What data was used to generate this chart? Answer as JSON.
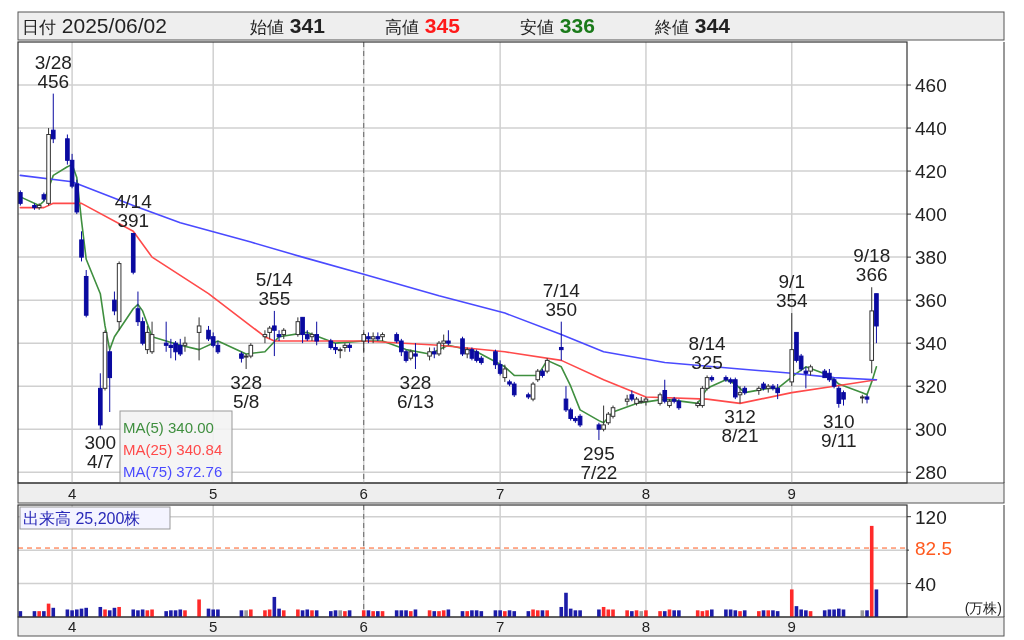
{
  "chart_data": [
    {
      "type": "candlestick",
      "x": [
        "2025-03-21",
        "2025-03-24",
        "2025-03-25",
        "2025-03-26",
        "2025-03-27",
        "2025-03-28",
        "2025-03-31",
        "2025-04-01",
        "2025-04-02",
        "2025-04-03",
        "2025-04-04",
        "2025-04-07",
        "2025-04-08",
        "2025-04-09",
        "2025-04-10",
        "2025-04-11",
        "2025-04-14",
        "2025-04-15",
        "2025-04-16",
        "2025-04-17",
        "2025-04-18",
        "2025-04-21",
        "2025-04-22",
        "2025-04-23",
        "2025-04-24",
        "2025-04-25",
        "2025-04-28",
        "2025-04-30",
        "2025-05-01",
        "2025-05-02",
        "2025-05-07",
        "2025-05-08",
        "2025-05-09",
        "2025-05-12",
        "2025-05-13",
        "2025-05-14",
        "2025-05-15",
        "2025-05-16",
        "2025-05-19",
        "2025-05-20",
        "2025-05-21",
        "2025-05-22",
        "2025-05-23",
        "2025-05-26",
        "2025-05-27",
        "2025-05-28",
        "2025-05-29",
        "2025-05-30",
        "2025-06-02",
        "2025-06-03",
        "2025-06-04",
        "2025-06-05",
        "2025-06-06",
        "2025-06-09",
        "2025-06-10",
        "2025-06-11",
        "2025-06-12",
        "2025-06-13",
        "2025-06-16",
        "2025-06-17",
        "2025-06-18",
        "2025-06-19",
        "2025-06-20",
        "2025-06-23",
        "2025-06-24",
        "2025-06-25",
        "2025-06-26",
        "2025-06-27",
        "2025-06-30",
        "2025-07-01",
        "2025-07-02",
        "2025-07-03",
        "2025-07-04",
        "2025-07-07",
        "2025-07-08",
        "2025-07-09",
        "2025-07-10",
        "2025-07-11",
        "2025-07-14",
        "2025-07-15",
        "2025-07-16",
        "2025-07-17",
        "2025-07-18",
        "2025-07-22",
        "2025-07-23",
        "2025-07-24",
        "2025-07-25",
        "2025-07-28",
        "2025-07-29",
        "2025-07-30",
        "2025-07-31",
        "2025-08-01",
        "2025-08-04",
        "2025-08-05",
        "2025-08-06",
        "2025-08-07",
        "2025-08-08",
        "2025-08-12",
        "2025-08-13",
        "2025-08-14",
        "2025-08-15",
        "2025-08-18",
        "2025-08-19",
        "2025-08-20",
        "2025-08-21",
        "2025-08-22",
        "2025-08-25",
        "2025-08-26",
        "2025-08-27",
        "2025-08-28",
        "2025-08-29",
        "2025-09-01",
        "2025-09-02",
        "2025-09-03",
        "2025-09-04",
        "2025-09-05",
        "2025-09-08",
        "2025-09-09",
        "2025-09-10",
        "2025-09-11",
        "2025-09-12",
        "2025-09-16",
        "2025-09-17",
        "2025-09-18",
        "2025-09-19"
      ],
      "ohlc": [
        [
          410,
          411,
          404,
          405
        ],
        [
          404,
          405,
          402,
          403
        ],
        [
          403,
          405,
          402,
          404
        ],
        [
          409,
          410,
          406,
          407
        ],
        [
          405,
          440,
          404,
          437
        ],
        [
          439,
          456,
          433,
          435
        ],
        [
          435,
          437,
          423,
          425
        ],
        [
          425,
          428,
          412,
          413
        ],
        [
          414,
          416,
          400,
          401
        ],
        [
          388,
          392,
          378,
          380
        ],
        [
          371,
          374,
          352,
          353
        ],
        [
          319,
          326,
          300,
          302
        ],
        [
          319,
          346,
          318,
          345
        ],
        [
          336,
          337,
          308,
          324
        ],
        [
          360,
          364,
          353,
          355
        ],
        [
          350,
          378,
          346,
          377
        ],
        [
          391,
          391,
          372,
          373
        ],
        [
          356,
          364,
          348,
          350
        ],
        [
          350,
          352,
          339,
          340
        ],
        [
          337,
          348,
          335,
          345
        ],
        [
          336,
          350,
          335,
          344
        ],
        [
          340,
          350,
          336,
          339
        ],
        [
          339,
          342,
          333,
          338
        ],
        [
          340,
          341,
          332,
          336
        ],
        [
          339,
          342,
          334,
          335
        ],
        [
          339,
          343,
          336,
          340
        ],
        [
          345,
          352,
          332,
          348
        ],
        [
          346,
          348,
          341,
          342
        ],
        [
          343,
          345,
          338,
          339
        ],
        [
          339,
          341,
          335,
          336
        ],
        [
          335,
          336,
          331,
          333
        ],
        [
          334,
          335,
          328,
          334
        ],
        [
          334,
          340,
          333,
          339
        ],
        [
          343,
          346,
          340,
          344
        ],
        [
          345,
          348,
          342,
          347
        ],
        [
          348,
          355,
          334,
          346
        ],
        [
          344,
          346,
          341,
          343
        ],
        [
          344,
          347,
          342,
          346
        ],
        [
          344,
          352,
          343,
          350
        ],
        [
          352,
          352,
          340,
          344
        ],
        [
          344,
          346,
          341,
          342
        ],
        [
          343,
          345,
          341,
          344
        ],
        [
          344,
          350,
          339,
          341
        ],
        [
          341,
          342,
          337,
          338
        ],
        [
          338,
          340,
          335,
          337
        ],
        [
          337,
          338,
          333,
          337
        ],
        [
          338,
          340,
          336,
          339
        ],
        [
          339,
          340,
          336,
          338
        ],
        [
          341,
          345,
          336,
          344
        ],
        [
          343,
          345,
          340,
          342
        ],
        [
          342,
          345,
          340,
          343
        ],
        [
          343,
          345,
          341,
          342
        ],
        [
          343,
          345,
          341,
          344
        ],
        [
          344,
          345,
          340,
          341
        ],
        [
          341,
          342,
          334,
          336
        ],
        [
          336,
          337,
          331,
          332
        ],
        [
          333,
          337,
          332,
          336
        ],
        [
          335,
          340,
          328,
          334
        ],
        [
          334,
          338,
          332,
          336
        ],
        [
          336,
          338,
          333,
          335
        ],
        [
          335,
          341,
          334,
          340
        ],
        [
          340,
          344,
          337,
          341
        ],
        [
          341,
          346,
          339,
          340
        ],
        [
          342,
          343,
          334,
          335
        ],
        [
          335,
          338,
          333,
          337
        ],
        [
          337,
          338,
          332,
          333
        ],
        [
          336,
          337,
          331,
          332
        ],
        [
          333,
          334,
          330,
          331
        ],
        [
          336,
          337,
          328,
          330
        ],
        [
          330,
          332,
          325,
          326
        ],
        [
          324,
          330,
          322,
          328
        ],
        [
          322,
          323,
          320,
          321
        ],
        [
          321,
          322,
          315,
          316
        ],
        [
          316,
          317,
          314,
          315
        ],
        [
          314,
          322,
          313,
          321
        ],
        [
          323,
          328,
          322,
          327
        ],
        [
          327,
          328,
          324,
          325
        ],
        [
          327,
          333,
          326,
          332
        ],
        [
          338,
          350,
          332,
          337
        ],
        [
          314,
          320,
          308,
          309
        ],
        [
          309,
          310,
          304,
          305
        ],
        [
          305,
          306,
          303,
          304
        ],
        [
          306,
          307,
          301,
          302
        ],
        [
          302,
          303,
          295,
          300
        ],
        [
          300,
          311,
          299,
          302
        ],
        [
          303,
          308,
          302,
          307
        ],
        [
          306,
          311,
          305,
          310
        ],
        [
          313,
          316,
          311,
          314
        ],
        [
          316,
          318,
          313,
          314
        ],
        [
          312,
          315,
          311,
          314
        ],
        [
          313,
          315,
          312,
          313
        ],
        [
          313,
          315,
          311,
          314
        ],
        [
          312,
          317,
          311,
          316
        ],
        [
          318,
          323,
          312,
          313
        ],
        [
          311,
          314,
          310,
          313
        ],
        [
          314,
          315,
          312,
          313
        ],
        [
          313,
          314,
          309,
          310
        ],
        [
          311,
          313,
          310,
          312
        ],
        [
          311,
          320,
          310,
          319
        ],
        [
          319,
          325,
          318,
          324
        ],
        [
          324,
          325,
          322,
          323
        ],
        [
          324,
          325,
          322,
          323
        ],
        [
          323,
          324,
          321,
          322
        ],
        [
          323,
          324,
          314,
          315
        ],
        [
          316,
          320,
          312,
          317
        ],
        [
          319,
          320,
          316,
          317
        ],
        [
          318,
          320,
          316,
          319
        ],
        [
          321,
          322,
          318,
          319
        ],
        [
          319,
          321,
          317,
          320
        ],
        [
          320,
          321,
          318,
          319
        ],
        [
          319,
          321,
          314,
          317
        ],
        [
          322,
          354,
          320,
          337
        ],
        [
          345,
          345,
          331,
          332
        ],
        [
          334,
          335,
          327,
          328
        ],
        [
          327,
          329,
          319,
          326
        ],
        [
          327,
          330,
          325,
          329
        ],
        [
          327,
          328,
          324,
          324
        ],
        [
          326,
          328,
          322,
          323
        ],
        [
          323,
          324,
          319,
          320
        ],
        [
          319,
          320,
          310,
          312
        ],
        [
          317,
          318,
          311,
          314
        ],
        [
          315,
          316,
          312,
          315
        ],
        [
          315,
          316,
          312,
          314
        ],
        [
          332,
          366,
          326,
          355
        ],
        [
          363,
          363,
          340,
          348
        ]
      ],
      "series": [
        {
          "type": "line",
          "name": "MA(5)  340.00",
          "color": "#3f8f3f",
          "x": [
            "2025-03-21",
            "2025-03-25",
            "2025-03-26",
            "2025-03-27",
            "2025-03-28",
            "2025-03-31",
            "2025-04-01",
            "2025-04-02",
            "2025-04-03",
            "2025-04-04",
            "2025-04-07",
            "2025-04-08",
            "2025-04-09",
            "2025-04-10",
            "2025-04-14",
            "2025-04-15",
            "2025-04-16",
            "2025-04-18",
            "2025-04-24",
            "2025-04-28",
            "2025-05-02",
            "2025-05-08",
            "2025-05-12",
            "2025-05-15",
            "2025-05-21",
            "2025-05-27",
            "2025-06-02",
            "2025-06-06",
            "2025-06-11",
            "2025-06-16",
            "2025-06-20",
            "2025-06-26",
            "2025-07-02",
            "2025-07-04",
            "2025-07-09",
            "2025-07-11",
            "2025-07-14",
            "2025-07-16",
            "2025-07-18",
            "2025-07-22",
            "2025-07-23",
            "2025-07-25",
            "2025-07-30",
            "2025-08-05",
            "2025-08-12",
            "2025-08-14",
            "2025-08-18",
            "2025-08-20",
            "2025-08-22",
            "2025-08-27",
            "2025-08-29",
            "2025-09-02",
            "2025-09-04",
            "2025-09-09",
            "2025-09-11",
            "2025-09-16",
            "2025-09-17",
            "2025-09-18",
            "2025-09-19"
          ],
          "values": [
            408,
            404,
            406,
            412,
            418,
            422,
            423,
            417,
            397,
            379,
            363,
            348,
            337,
            343,
            356,
            358,
            355,
            343,
            339,
            337,
            341,
            335,
            336,
            343,
            345,
            340,
            341,
            341,
            337,
            335,
            339,
            336,
            329,
            325,
            325,
            332,
            329,
            320,
            309,
            304,
            303,
            308,
            312,
            314,
            312,
            319,
            323,
            321,
            317,
            319,
            319,
            326,
            329,
            325,
            321,
            317,
            316,
            322,
            329
          ]
        },
        {
          "type": "line",
          "name": "MA(25)  340.84",
          "color": "#ff4a4a",
          "x": [
            "2025-03-21",
            "2025-03-26",
            "2025-03-28",
            "2025-04-03",
            "2025-04-14",
            "2025-04-18",
            "2025-04-30",
            "2025-05-12",
            "2025-05-14",
            "2025-06-02",
            "2025-06-18",
            "2025-07-02",
            "2025-07-14",
            "2025-07-23",
            "2025-08-01",
            "2025-08-14",
            "2025-08-21",
            "2025-09-01",
            "2025-09-10",
            "2025-09-19"
          ],
          "values": [
            403,
            403,
            405,
            405,
            392,
            380,
            363,
            343,
            341,
            341,
            339,
            336,
            332,
            323,
            315,
            314,
            312,
            317,
            320,
            323
          ]
        },
        {
          "type": "line",
          "name": "MA(75)  372.76",
          "color": "#4a4aff",
          "x": [
            "2025-03-21",
            "2025-04-01",
            "2025-04-14",
            "2025-04-24",
            "2025-05-09",
            "2025-05-20",
            "2025-06-02",
            "2025-06-18",
            "2025-07-02",
            "2025-07-14",
            "2025-07-23",
            "2025-08-05",
            "2025-08-21",
            "2025-09-01",
            "2025-09-10",
            "2025-09-19"
          ],
          "values": [
            418,
            415,
            404,
            396,
            387,
            380,
            372,
            362,
            354,
            344,
            336,
            331,
            328,
            326,
            324,
            323
          ]
        }
      ],
      "ylim": [
        275,
        480
      ],
      "yticks": [
        280,
        300,
        320,
        340,
        360,
        380,
        400,
        420,
        440,
        460
      ],
      "xlim": [
        "2025-03-21",
        "2025-09-25"
      ],
      "xticks": [
        {
          "value": "2025-04-01",
          "label": "4"
        },
        {
          "value": "2025-05-01",
          "label": "5"
        },
        {
          "value": "2025-06-02",
          "label": "6"
        },
        {
          "value": "2025-07-01",
          "label": "7"
        },
        {
          "value": "2025-08-01",
          "label": "8"
        },
        {
          "value": "2025-09-01",
          "label": "9"
        }
      ],
      "grid": true,
      "legend": "bottom left",
      "ref_lines": [
        {
          "axis": "x",
          "value": "2025-06-02",
          "color": "#666666",
          "line_style": "dashed"
        }
      ],
      "annotations": [
        "日付 2025/06/02",
        "始値 341",
        "高値 345",
        "安値 336",
        "終値 344",
        {
          "text": "3/28\n456",
          "x": "2025-03-28",
          "y": 456
        },
        {
          "text": "300\n4/7",
          "x": "2025-04-07",
          "y": 300
        },
        {
          "text": "4/14\n391",
          "x": "2025-04-14",
          "y": 391
        },
        {
          "text": "328\n5/8",
          "x": "2025-05-08",
          "y": 328
        },
        {
          "text": "5/14\n355",
          "x": "2025-05-14",
          "y": 355
        },
        {
          "text": "328\n6/13",
          "x": "2025-06-13",
          "y": 328
        },
        {
          "text": "7/14\n350",
          "x": "2025-07-14",
          "y": 350
        },
        {
          "text": "295\n7/22",
          "x": "2025-07-22",
          "y": 295
        },
        {
          "text": "8/14\n325",
          "x": "2025-08-14",
          "y": 325
        },
        {
          "text": "312\n8/21",
          "x": "2025-08-21",
          "y": 312
        },
        {
          "text": "9/1\n354",
          "x": "2025-09-01",
          "y": 354
        },
        {
          "text": "310\n9/11",
          "x": "2025-09-11",
          "y": 310
        },
        {
          "text": "9/18\n366",
          "x": "2025-09-18",
          "y": 366
        }
      ]
    },
    {
      "type": "bar",
      "title": "出来高 25,200株",
      "ylabel": "(万株)",
      "x": [
        "2025-03-21",
        "2025-03-24",
        "2025-03-25",
        "2025-03-26",
        "2025-03-27",
        "2025-03-28",
        "2025-03-31",
        "2025-04-01",
        "2025-04-02",
        "2025-04-03",
        "2025-04-04",
        "2025-04-07",
        "2025-04-08",
        "2025-04-09",
        "2025-04-10",
        "2025-04-11",
        "2025-04-14",
        "2025-04-15",
        "2025-04-16",
        "2025-04-17",
        "2025-04-18",
        "2025-04-21",
        "2025-04-22",
        "2025-04-23",
        "2025-04-24",
        "2025-04-25",
        "2025-04-28",
        "2025-04-30",
        "2025-05-01",
        "2025-05-02",
        "2025-05-07",
        "2025-05-08",
        "2025-05-09",
        "2025-05-12",
        "2025-05-13",
        "2025-05-14",
        "2025-05-15",
        "2025-05-16",
        "2025-05-19",
        "2025-05-20",
        "2025-05-21",
        "2025-05-22",
        "2025-05-23",
        "2025-05-26",
        "2025-05-27",
        "2025-05-28",
        "2025-05-29",
        "2025-05-30",
        "2025-06-02",
        "2025-06-03",
        "2025-06-04",
        "2025-06-05",
        "2025-06-06",
        "2025-06-09",
        "2025-06-10",
        "2025-06-11",
        "2025-06-12",
        "2025-06-13",
        "2025-06-16",
        "2025-06-17",
        "2025-06-18",
        "2025-06-19",
        "2025-06-20",
        "2025-06-23",
        "2025-06-24",
        "2025-06-25",
        "2025-06-26",
        "2025-06-27",
        "2025-06-30",
        "2025-07-01",
        "2025-07-02",
        "2025-07-03",
        "2025-07-04",
        "2025-07-07",
        "2025-07-08",
        "2025-07-09",
        "2025-07-10",
        "2025-07-11",
        "2025-07-14",
        "2025-07-15",
        "2025-07-16",
        "2025-07-17",
        "2025-07-18",
        "2025-07-22",
        "2025-07-23",
        "2025-07-24",
        "2025-07-25",
        "2025-07-28",
        "2025-07-29",
        "2025-07-30",
        "2025-07-31",
        "2025-08-01",
        "2025-08-04",
        "2025-08-05",
        "2025-08-06",
        "2025-08-07",
        "2025-08-08",
        "2025-08-12",
        "2025-08-13",
        "2025-08-14",
        "2025-08-15",
        "2025-08-18",
        "2025-08-19",
        "2025-08-20",
        "2025-08-21",
        "2025-08-22",
        "2025-08-25",
        "2025-08-26",
        "2025-08-27",
        "2025-08-28",
        "2025-08-29",
        "2025-09-01",
        "2025-09-02",
        "2025-09-03",
        "2025-09-04",
        "2025-09-05",
        "2025-09-08",
        "2025-09-09",
        "2025-09-10",
        "2025-09-11",
        "2025-09-12",
        "2025-09-16",
        "2025-09-17",
        "2025-09-18",
        "2025-09-19"
      ],
      "values": [
        7,
        7,
        7,
        7,
        16,
        11,
        9,
        8,
        9,
        10,
        11,
        12,
        9,
        8,
        11,
        12,
        9,
        8,
        9,
        8,
        9,
        7,
        8,
        8,
        9,
        8,
        21,
        10,
        9,
        9,
        8,
        8,
        9,
        8,
        9,
        24,
        10,
        8,
        9,
        8,
        9,
        8,
        8,
        7,
        8,
        8,
        7,
        8,
        8,
        8,
        7,
        7,
        7,
        8,
        8,
        8,
        7,
        9,
        8,
        7,
        7,
        8,
        9,
        7,
        7,
        8,
        8,
        7,
        8,
        8,
        7,
        8,
        7,
        7,
        9,
        8,
        8,
        8,
        12,
        29,
        10,
        8,
        8,
        9,
        12,
        9,
        9,
        8,
        7,
        8,
        7,
        8,
        7,
        7,
        9,
        8,
        8,
        8,
        7,
        8,
        9,
        9,
        9,
        8,
        7,
        8,
        7,
        8,
        8,
        8,
        7,
        33,
        13,
        9,
        8,
        7,
        8,
        9,
        9,
        10,
        9,
        8,
        8,
        109,
        33
      ],
      "colors": [
        "#1c1ca8",
        "#1c1ca8",
        "#ff2a2a",
        "#1c1ca8",
        "#ff2a2a",
        "#1c1ca8",
        "#1c1ca8",
        "#1c1ca8",
        "#1c1ca8",
        "#1c1ca8",
        "#1c1ca8",
        "#1c1ca8",
        "#ff2a2a",
        "#1c1ca8",
        "#1c1ca8",
        "#ff2a2a",
        "#1c1ca8",
        "#1c1ca8",
        "#1c1ca8",
        "#ff2a2a",
        "#ff2a2a",
        "#1c1ca8",
        "#1c1ca8",
        "#1c1ca8",
        "#1c1ca8",
        "#ff2a2a",
        "#ff2a2a",
        "#1c1ca8",
        "#1c1ca8",
        "#1c1ca8",
        "#1c1ca8",
        "#9a9a9a",
        "#ff2a2a",
        "#ff2a2a",
        "#ff2a2a",
        "#1c1ca8",
        "#1c1ca8",
        "#ff2a2a",
        "#ff2a2a",
        "#1c1ca8",
        "#1c1ca8",
        "#ff2a2a",
        "#1c1ca8",
        "#1c1ca8",
        "#1c1ca8",
        "#9a9a9a",
        "#ff2a2a",
        "#1c1ca8",
        "#ff2a2a",
        "#1c1ca8",
        "#ff2a2a",
        "#1c1ca8",
        "#ff2a2a",
        "#1c1ca8",
        "#1c1ca8",
        "#1c1ca8",
        "#ff2a2a",
        "#1c1ca8",
        "#ff2a2a",
        "#1c1ca8",
        "#ff2a2a",
        "#ff2a2a",
        "#1c1ca8",
        "#1c1ca8",
        "#ff2a2a",
        "#1c1ca8",
        "#1c1ca8",
        "#1c1ca8",
        "#1c1ca8",
        "#1c1ca8",
        "#ff2a2a",
        "#1c1ca8",
        "#1c1ca8",
        "#1c1ca8",
        "#ff2a2a",
        "#ff2a2a",
        "#1c1ca8",
        "#ff2a2a",
        "#1c1ca8",
        "#1c1ca8",
        "#1c1ca8",
        "#1c1ca8",
        "#1c1ca8",
        "#1c1ca8",
        "#ff2a2a",
        "#ff2a2a",
        "#ff2a2a",
        "#ff2a2a",
        "#1c1ca8",
        "#ff2a2a",
        "#9a9a9a",
        "#ff2a2a",
        "#ff2a2a",
        "#1c1ca8",
        "#ff2a2a",
        "#1c1ca8",
        "#1c1ca8",
        "#ff2a2a",
        "#ff2a2a",
        "#ff2a2a",
        "#1c1ca8",
        "#1c1ca8",
        "#1c1ca8",
        "#1c1ca8",
        "#ff2a2a",
        "#1c1ca8",
        "#ff2a2a",
        "#1c1ca8",
        "#ff2a2a",
        "#1c1ca8",
        "#1c1ca8",
        "#ff2a2a",
        "#1c1ca8",
        "#1c1ca8",
        "#1c1ca8",
        "#ff2a2a",
        "#1c1ca8",
        "#1c1ca8",
        "#1c1ca8",
        "#1c1ca8",
        "#1c1ca8",
        "#9a9a9a",
        "#1c1ca8",
        "#ff2a2a",
        "#1c1ca8"
      ],
      "ylim": [
        0,
        134
      ],
      "yticks": [
        40,
        {
          "value": 80,
          "label": null
        },
        120
      ],
      "xlim": [
        "2025-03-21",
        "2025-09-25"
      ],
      "xticks": [
        {
          "value": "2025-04-01",
          "label": "4"
        },
        {
          "value": "2025-05-01",
          "label": "5"
        },
        {
          "value": "2025-06-02",
          "label": "6"
        },
        {
          "value": "2025-07-01",
          "label": "7"
        },
        {
          "value": "2025-08-01",
          "label": "8"
        },
        {
          "value": "2025-09-01",
          "label": "9"
        }
      ],
      "grid": true,
      "ref_lines": [
        {
          "axis": "x",
          "value": "2025-06-02",
          "color": "#666666",
          "line_style": "dashed"
        },
        {
          "axis": "y",
          "value": 82.5,
          "label": "82.5",
          "color": "#ff5a1f",
          "line_style": "dashed"
        }
      ]
    }
  ]
}
